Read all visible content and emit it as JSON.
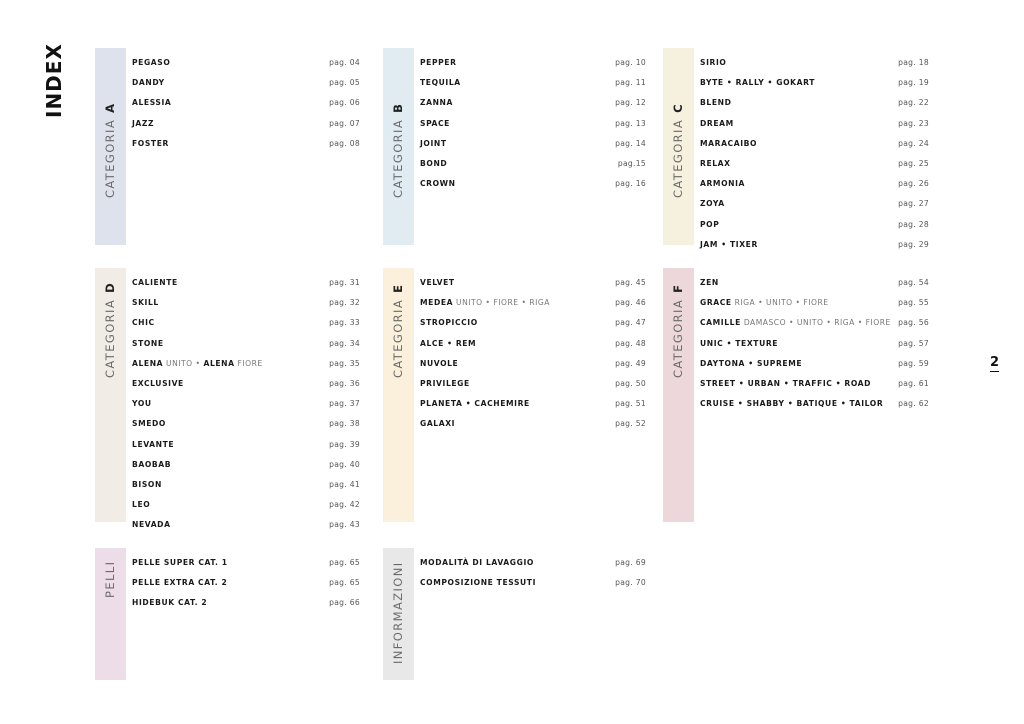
{
  "index_title": "INDEX",
  "page_number": "2",
  "sections": [
    {
      "label": "CATEGORIA",
      "letter": "A",
      "color": "#dde2ec",
      "entries": [
        {
          "name": "PEGASO",
          "page": "pag. 04"
        },
        {
          "name": "DANDY",
          "page": "pag. 05"
        },
        {
          "name": "ALESSIA",
          "page": "pag. 06"
        },
        {
          "name": "JAZZ",
          "page": "pag. 07"
        },
        {
          "name": "FOSTER",
          "page": "pag. 08"
        }
      ]
    },
    {
      "label": "CATEGORIA",
      "letter": "B",
      "color": "#e1ecf2",
      "entries": [
        {
          "name": "PEPPER",
          "page": "pag. 10"
        },
        {
          "name": "TEQUILA",
          "page": "pag. 11"
        },
        {
          "name": "ZANNA",
          "page": "pag. 12"
        },
        {
          "name": "SPACE",
          "page": "pag. 13"
        },
        {
          "name": "JOINT",
          "page": "pag. 14"
        },
        {
          "name": "BOND",
          "page": "pag.15"
        },
        {
          "name": "CROWN",
          "page": "pag. 16"
        }
      ]
    },
    {
      "label": "CATEGORIA",
      "letter": "C",
      "color": "#f5f1de",
      "entries": [
        {
          "name": "SIRIO",
          "page": "pag. 18"
        },
        {
          "name": "BYTE • RALLY • GOKART",
          "page": "pag. 19"
        },
        {
          "name": "BLEND",
          "page": "pag. 22"
        },
        {
          "name": "DREAM",
          "page": "pag. 23"
        },
        {
          "name": "MARACAIBO",
          "page": "pag. 24"
        },
        {
          "name": "RELAX",
          "page": "pag. 25"
        },
        {
          "name": "ARMONIA",
          "page": "pag. 26"
        },
        {
          "name": "ZOYA",
          "page": "pag. 27"
        },
        {
          "name": "POP",
          "page": "pag. 28"
        },
        {
          "name": "JAM • TIXER",
          "page": "pag. 29"
        }
      ]
    },
    {
      "label": "CATEGORIA",
      "letter": "D",
      "color": "#f1ede6",
      "entries": [
        {
          "name": "CALIENTE",
          "page": "pag. 31"
        },
        {
          "name": "SKILL",
          "page": "pag. 32"
        },
        {
          "name": "CHIC",
          "page": "pag. 33"
        },
        {
          "name": "STONE",
          "page": "pag. 34"
        },
        {
          "name": "ALENA",
          "extra": " UNITO • ",
          "name2": "ALENA",
          "extra2": " FIORE",
          "page": "pag. 35"
        },
        {
          "name": "EXCLUSIVE",
          "page": "pag. 36"
        },
        {
          "name": "YOU",
          "page": "pag. 37"
        },
        {
          "name": "SMEDO",
          "page": "pag. 38"
        },
        {
          "name": "LEVANTE",
          "page": "pag. 39"
        },
        {
          "name": "BAOBAB",
          "page": "pag. 40"
        },
        {
          "name": "BISON",
          "page": "pag. 41"
        },
        {
          "name": "LEO",
          "page": "pag. 42"
        },
        {
          "name": "NEVADA",
          "page": "pag. 43"
        }
      ]
    },
    {
      "label": "CATEGORIA",
      "letter": "E",
      "color": "#fbf0dc",
      "entries": [
        {
          "name": "VELVET",
          "page": "pag. 45"
        },
        {
          "name": "MEDEA",
          "extra": " UNITO • FIORE • RIGA",
          "page": "pag. 46"
        },
        {
          "name": "STROPICCIO",
          "page": "pag. 47"
        },
        {
          "name": "ALCE • REM",
          "page": "pag. 48"
        },
        {
          "name": "NUVOLE",
          "page": "pag. 49"
        },
        {
          "name": "PRIVILEGE",
          "page": "pag. 50"
        },
        {
          "name": "PLANETA • CACHEMIRE",
          "page": "pag. 51"
        },
        {
          "name": "GALAXI",
          "page": "pag. 52"
        }
      ]
    },
    {
      "label": "CATEGORIA",
      "letter": "F",
      "color": "#ecd7da",
      "entries": [
        {
          "name": "ZEN",
          "page": "pag. 54"
        },
        {
          "name": "GRACE",
          "extra": " RIGA • UNITO • FIORE",
          "page": "pag. 55"
        },
        {
          "name": "CAMILLE",
          "extra": " DAMASCO • UNITO • RIGA • FIORE",
          "page": "pag. 56"
        },
        {
          "name": "UNIC • TEXTURE",
          "page": "pag. 57"
        },
        {
          "name": "DAYTONA • SUPREME",
          "page": "pag. 59"
        },
        {
          "name": "STREET • URBAN • TRAFFIC • ROAD",
          "page": "pag. 61"
        },
        {
          "name": "CRUISE • SHABBY • BATIQUE • TAILOR",
          "page": "pag. 62"
        }
      ]
    },
    {
      "label": "PELLI",
      "letter": "",
      "color": "#ecdde8",
      "entries": [
        {
          "name": "PELLE SUPER CAT. 1",
          "page": "pag. 65"
        },
        {
          "name": "PELLE EXTRA CAT. 2",
          "page": "pag. 65"
        },
        {
          "name": "HIDEBUK CAT. 2",
          "page": "pag. 66"
        }
      ]
    },
    {
      "label": "INFORMAZIONI",
      "letter": "",
      "color": "#e8e8e8",
      "entries": [
        {
          "name": "MODALITÀ DI LAVAGGIO",
          "page": "pag. 69"
        },
        {
          "name": "COMPOSIZIONE TESSUTI",
          "page": "pag. 70"
        }
      ]
    }
  ]
}
